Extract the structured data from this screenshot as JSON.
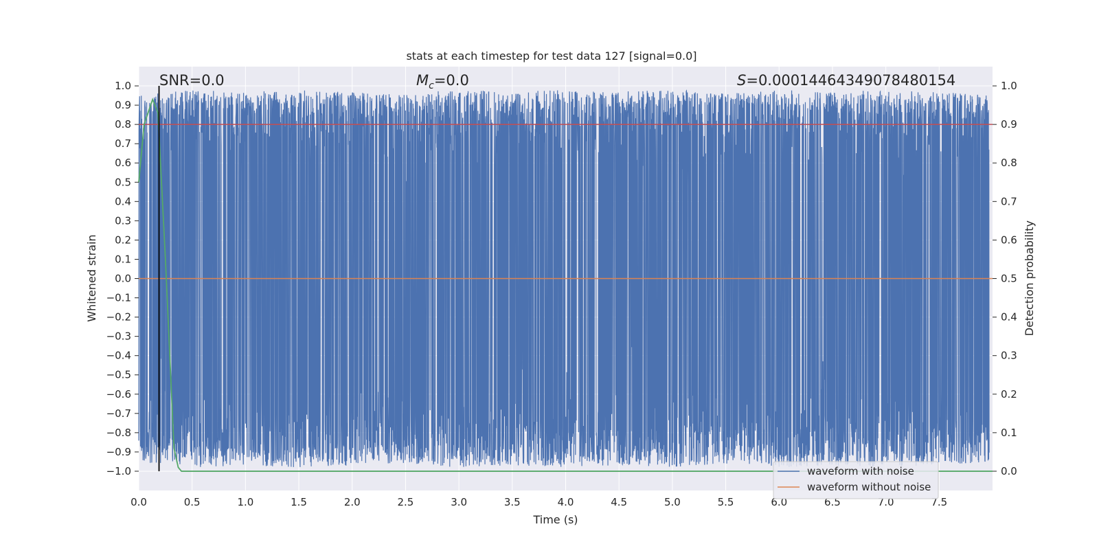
{
  "chart_data": {
    "type": "line",
    "title": "stats at each timestep for test data 127 [signal=0.0]",
    "xlabel": "Time (s)",
    "ylabel_left": "Whitened strain",
    "ylabel_right": "Detection probability",
    "xlim": [
      0.0,
      8.0
    ],
    "ylim_left": [
      -1.1,
      1.1
    ],
    "ylim_right": [
      -0.05,
      1.05
    ],
    "x_ticks": [
      "0.0",
      "0.5",
      "1.0",
      "1.5",
      "2.0",
      "2.5",
      "3.0",
      "3.5",
      "4.0",
      "4.5",
      "5.0",
      "5.5",
      "6.0",
      "6.5",
      "7.0",
      "7.5"
    ],
    "y_left_ticks": [
      "1.0",
      "0.9",
      "0.8",
      "0.7",
      "0.6",
      "0.5",
      "0.4",
      "0.3",
      "0.2",
      "0.1",
      "0.0",
      "−0.1",
      "−0.2",
      "−0.3",
      "−0.4",
      "−0.5",
      "−0.6",
      "−0.7",
      "−0.8",
      "−0.9",
      "−1.0"
    ],
    "y_right_ticks": [
      "1.0",
      "0.9",
      "0.8",
      "0.7",
      "0.6",
      "0.5",
      "0.4",
      "0.3",
      "0.2",
      "0.1",
      "0.0"
    ],
    "grid": true,
    "annotations": {
      "snr": "SNR=0.0",
      "mc_symbol": "M",
      "mc_sub": "c",
      "mc_value": "=0.0",
      "s_symbol": "S",
      "s_value": "=0.00014464349078480154"
    },
    "series": [
      {
        "name": "waveform with noise",
        "color": "#4c72b0",
        "description_envelope_upper": [
          [
            0.0,
            0.95
          ],
          [
            0.5,
            0.98
          ],
          [
            1.0,
            0.97
          ],
          [
            1.5,
            0.98
          ],
          [
            2.0,
            0.97
          ],
          [
            2.5,
            0.96
          ],
          [
            3.0,
            0.98
          ],
          [
            3.5,
            0.97
          ],
          [
            4.0,
            0.98
          ],
          [
            4.5,
            0.97
          ],
          [
            5.0,
            0.98
          ],
          [
            5.5,
            0.96
          ],
          [
            6.0,
            0.98
          ],
          [
            6.5,
            0.97
          ],
          [
            7.0,
            0.98
          ],
          [
            7.5,
            0.97
          ],
          [
            8.0,
            0.95
          ]
        ],
        "sample_interval": 0.002
      },
      {
        "name": "waveform without noise",
        "color": "#dd8452",
        "x": [
          0.0,
          8.0
        ],
        "y": [
          0.0,
          0.0
        ]
      },
      {
        "name": "",
        "color": "#55a868",
        "axis": "right",
        "x": [
          0.0,
          0.05,
          0.13,
          0.18,
          0.25,
          0.33,
          0.37,
          0.4,
          8.0
        ],
        "y": [
          0.75,
          0.9,
          0.965,
          0.93,
          0.55,
          0.06,
          0.01,
          0.0,
          0.0
        ]
      }
    ],
    "threshold_line": {
      "axis": "right",
      "y": 0.9,
      "color": "#c44e52"
    },
    "vertical_marker": {
      "x": 0.19,
      "color": "#000000"
    },
    "legend": {
      "position": "lower-right",
      "entries": [
        {
          "label": "waveform with noise",
          "color": "#4c72b0"
        },
        {
          "label": "waveform without noise",
          "color": "#dd8452"
        }
      ]
    },
    "background_color": "#eaeaf2"
  }
}
